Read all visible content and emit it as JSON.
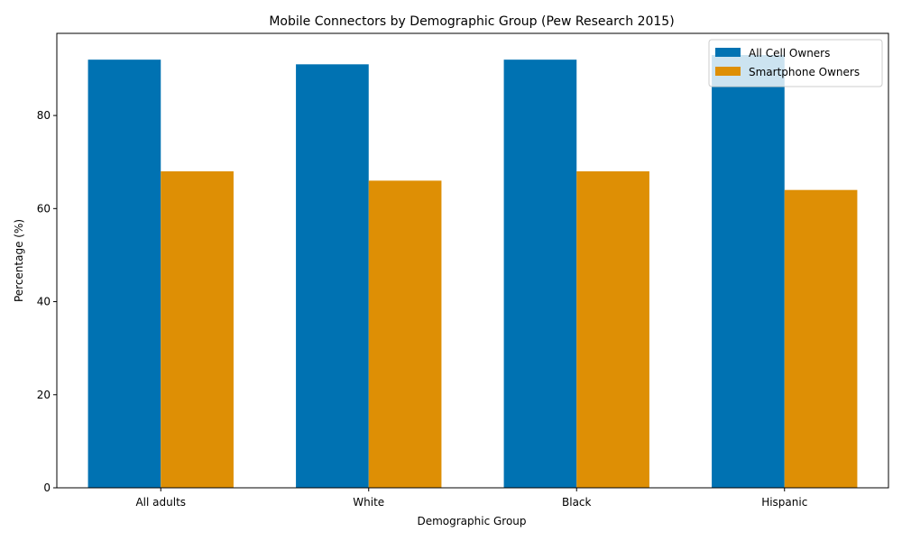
{
  "chart_data": {
    "type": "bar",
    "title": "Mobile Connectors by Demographic Group (Pew Research 2015)",
    "xlabel": "Demographic Group",
    "ylabel": "Percentage (%)",
    "categories": [
      "All adults",
      "White",
      "Black",
      "Hispanic"
    ],
    "series": [
      {
        "name": "All Cell Owners",
        "values": [
          92,
          91,
          92,
          93
        ],
        "color": "#0072b2"
      },
      {
        "name": "Smartphone Owners",
        "values": [
          68,
          66,
          68,
          64
        ],
        "color": "#de8f05"
      }
    ],
    "ylim": [
      0,
      97.65
    ],
    "yticks": [
      0,
      20,
      40,
      60,
      80
    ],
    "grid": false,
    "legend_position": "top-right"
  }
}
